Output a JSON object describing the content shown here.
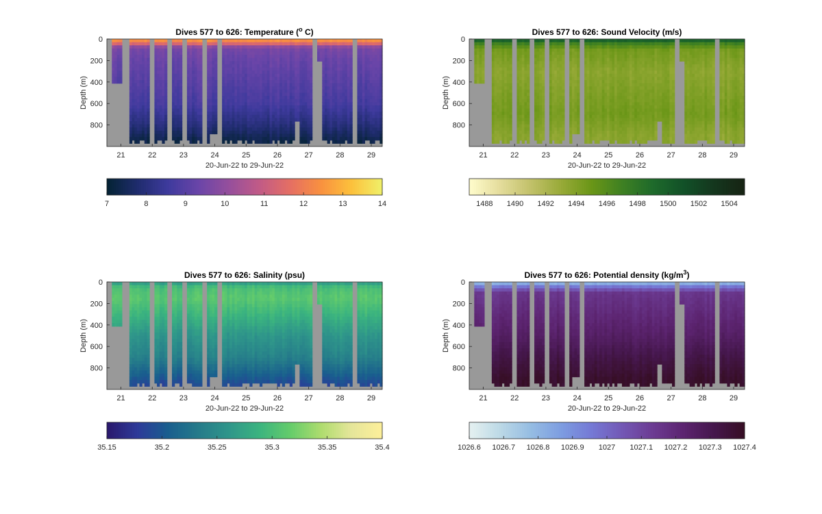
{
  "chart_data": [
    {
      "type": "heatmap",
      "title": "Dives 577 to 626: Temperature (",
      "title_super": "o",
      "title_suffix": " C)",
      "ylabel": "Depth (m)",
      "xlabel": "20-Jun-22 to 29-Jun-22",
      "x_ticks": [
        "21",
        "22",
        "23",
        "24",
        "25",
        "26",
        "27",
        "28",
        "29"
      ],
      "y_ticks": [
        "0",
        "200",
        "400",
        "600",
        "800"
      ],
      "ylim": [
        0,
        1000
      ],
      "y_reversed": true,
      "colorbar": {
        "range": [
          7,
          14
        ],
        "ticks": [
          "7",
          "8",
          "9",
          "10",
          "11",
          "12",
          "13",
          "14"
        ],
        "colormap": "thermal"
      },
      "profile_values": {
        "depths": [
          0,
          40,
          80,
          200,
          400,
          600,
          800,
          950
        ],
        "values": [
          12.8,
          11.6,
          9.6,
          9.3,
          9.0,
          8.7,
          8.0,
          7.3
        ]
      }
    },
    {
      "type": "heatmap",
      "title": "Dives 577 to 626: Sound Velocity (m/s)",
      "ylabel": "Depth (m)",
      "xlabel": "20-Jun-22 to 29-Jun-22",
      "x_ticks": [
        "21",
        "22",
        "23",
        "24",
        "25",
        "26",
        "27",
        "28",
        "29"
      ],
      "y_ticks": [
        "0",
        "200",
        "400",
        "600",
        "800"
      ],
      "ylim": [
        0,
        1000
      ],
      "y_reversed": true,
      "colorbar": {
        "range": [
          1487,
          1505
        ],
        "ticks": [
          "1488",
          "1490",
          "1492",
          "1494",
          "1496",
          "1498",
          "1500",
          "1502",
          "1504"
        ],
        "colormap": "speed"
      },
      "profile_values": {
        "depths": [
          0,
          40,
          100,
          300,
          500,
          700,
          900
        ],
        "values": [
          1501,
          1497,
          1494.5,
          1493.5,
          1494,
          1494.5,
          1493.5
        ]
      }
    },
    {
      "type": "heatmap",
      "title": "Dives 577 to 626: Salinity (psu)",
      "ylabel": "Depth (m)",
      "xlabel": "20-Jun-22 to 29-Jun-22",
      "x_ticks": [
        "21",
        "22",
        "23",
        "24",
        "25",
        "26",
        "27",
        "28",
        "29"
      ],
      "y_ticks": [
        "0",
        "200",
        "400",
        "600",
        "800"
      ],
      "ylim": [
        0,
        1000
      ],
      "y_reversed": true,
      "colorbar": {
        "range": [
          35.15,
          35.4
        ],
        "ticks": [
          "35.15",
          "35.2",
          "35.25",
          "35.3",
          "35.35",
          "35.4"
        ],
        "colormap": "haline"
      },
      "profile_values": {
        "depths": [
          0,
          50,
          150,
          300,
          500,
          700,
          850,
          950
        ],
        "values": [
          35.26,
          35.3,
          35.31,
          35.29,
          35.26,
          35.24,
          35.21,
          35.19
        ]
      }
    },
    {
      "type": "heatmap",
      "title": "Dives 577 to 626: Potential density (kg/m",
      "title_super": "3",
      "title_suffix": ")",
      "ylabel": "Depth (m)",
      "xlabel": "20-Jun-22 to 29-Jun-22",
      "x_ticks": [
        "21",
        "22",
        "23",
        "24",
        "25",
        "26",
        "27",
        "28",
        "29"
      ],
      "y_ticks": [
        "0",
        "200",
        "400",
        "600",
        "800"
      ],
      "ylim": [
        0,
        1000
      ],
      "y_reversed": true,
      "colorbar": {
        "range": [
          1026.6,
          1027.4
        ],
        "ticks": [
          "1026.6",
          "1026.7",
          "1026.8",
          "1026.9",
          "1027",
          "1027.1",
          "1027.2",
          "1027.3",
          "1027.4"
        ],
        "colormap": "dense"
      },
      "profile_values": {
        "depths": [
          0,
          40,
          100,
          300,
          500,
          700,
          900
        ],
        "values": [
          1026.75,
          1026.95,
          1027.15,
          1027.2,
          1027.25,
          1027.32,
          1027.38
        ]
      }
    }
  ],
  "dive_coverage": {
    "x_range_days": [
      20.55,
      29.35
    ],
    "gaps_days": [
      [
        20.55,
        20.7
      ],
      [
        21.06,
        21.28
      ],
      [
        21.95,
        22.1
      ],
      [
        22.45,
        22.65
      ],
      [
        22.92,
        23.08
      ],
      [
        23.63,
        23.78
      ],
      [
        24.1,
        24.25
      ],
      [
        27.15,
        27.3
      ],
      [
        28.42,
        28.58
      ]
    ],
    "shallow_dives": [
      [
        20.7,
        21.06,
        400
      ]
    ],
    "bottom_gaps": [
      [
        23.85,
        24.1,
        870
      ],
      [
        26.55,
        26.75,
        760
      ],
      [
        27.3,
        27.45,
        220
      ]
    ]
  },
  "colors": {
    "nodata": "#999999",
    "axes": "#262626"
  }
}
